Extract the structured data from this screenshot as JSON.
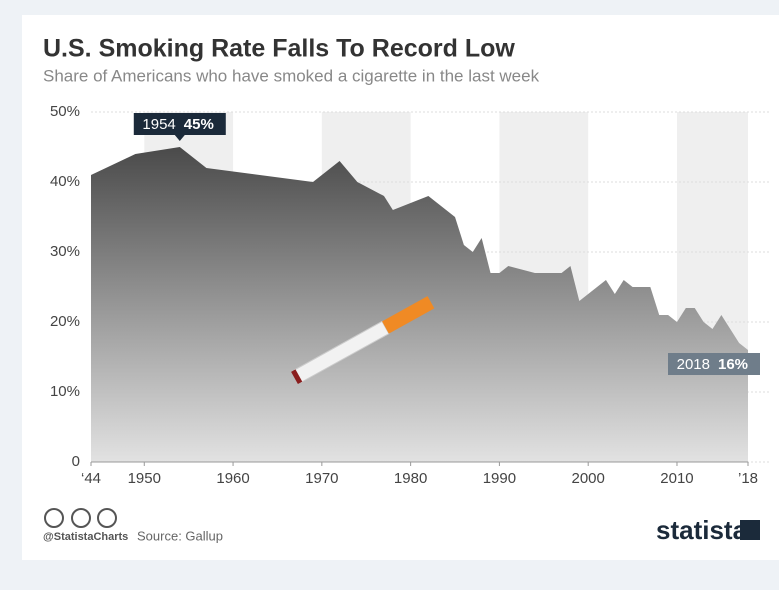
{
  "chart_data": {
    "type": "area",
    "title": "U.S. Smoking Rate Falls To Record Low",
    "subtitle": "Share of Americans who have smoked a cigarette in the last week",
    "x": [
      1944,
      1949,
      1954,
      1957,
      1969,
      1972,
      1974,
      1977,
      1978,
      1982,
      1985,
      1986,
      1987,
      1988,
      1989,
      1990,
      1991,
      1994,
      1997,
      1998,
      1999,
      2001,
      2002,
      2003,
      2004,
      2005,
      2007,
      2008,
      2009,
      2010,
      2011,
      2012,
      2013,
      2014,
      2015,
      2016,
      2017,
      2018
    ],
    "values": [
      41,
      44,
      45,
      42,
      40,
      43,
      40,
      38,
      36,
      38,
      35,
      31,
      30,
      32,
      27,
      27,
      28,
      27,
      27,
      28,
      23,
      25,
      26,
      24,
      26,
      25,
      25,
      21,
      21,
      20,
      22,
      22,
      20,
      19,
      21,
      19,
      17,
      16
    ],
    "xlim": [
      1944,
      2018
    ],
    "xticks": [
      {
        "value": 1944,
        "label": "‘44"
      },
      1950,
      1960,
      1970,
      1980,
      1990,
      2000,
      2010,
      {
        "value": 2018,
        "label": "’18"
      }
    ],
    "ylim": [
      0,
      50
    ],
    "yticks": [
      0,
      {
        "value": 10,
        "label": "10%"
      },
      {
        "value": 20,
        "label": "20%"
      },
      {
        "value": 30,
        "label": "30%"
      },
      {
        "value": 40,
        "label": "40%"
      },
      {
        "value": 50,
        "label": "50%"
      }
    ],
    "grid": true,
    "annotations": [
      {
        "x": 1954,
        "y": 45,
        "year": "1954",
        "text": "45%",
        "color": "#1b2a3a"
      },
      {
        "x": 2018,
        "y": 16,
        "year": "2018",
        "text": "16%",
        "color": "#6f7d8a"
      }
    ],
    "footer": {
      "handle": "@StatistaCharts",
      "source": "Source: Gallup",
      "brand": "statista"
    }
  }
}
